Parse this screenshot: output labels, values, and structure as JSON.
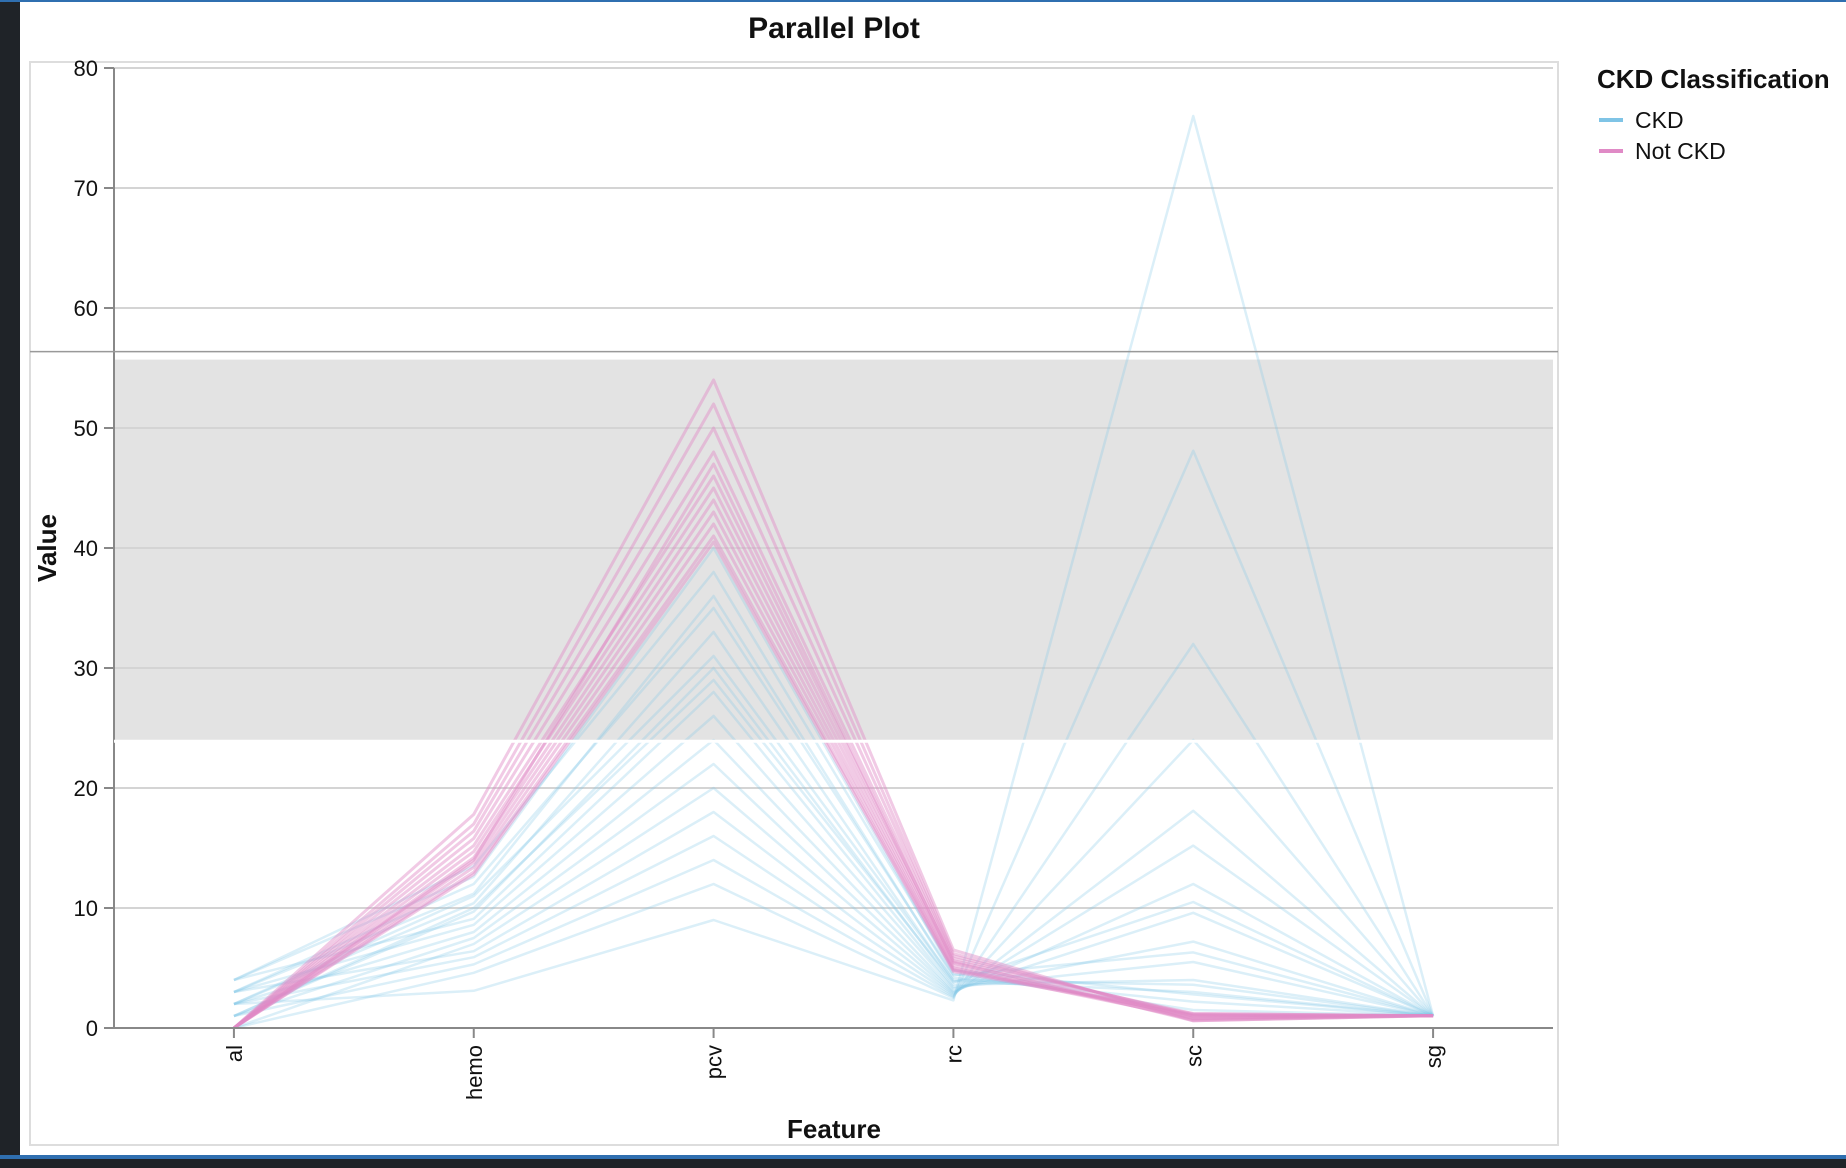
{
  "chart_data": {
    "type": "line",
    "subtype": "parallel-coordinates",
    "title": "Parallel Plot",
    "xlabel": "Feature",
    "ylabel": "Value",
    "categories": [
      "al",
      "hemo",
      "pcv",
      "rc",
      "sc",
      "sg"
    ],
    "ylim": [
      0,
      80
    ],
    "yticks": [
      0,
      10,
      20,
      30,
      40,
      50,
      60,
      70,
      80
    ],
    "grid": true,
    "legend": {
      "title": "CKD Classification",
      "placement": "top-right",
      "entries": [
        {
          "label": "CKD",
          "color": "#7fc4e6"
        },
        {
          "label": "Not CKD",
          "color": "#e08ac6"
        }
      ]
    },
    "brush_selection": {
      "ymin": 23.9,
      "ymax": 55.7,
      "color": "#e3e3e3"
    },
    "series": [
      {
        "group": "CKD",
        "values": [
          4,
          12.6,
          40,
          4.5,
          1.5,
          1.02
        ]
      },
      {
        "group": "CKD",
        "values": [
          3,
          11.2,
          36,
          4.2,
          2.2,
          1.015
        ]
      },
      {
        "group": "CKD",
        "values": [
          2,
          10.4,
          33,
          3.9,
          3.0,
          1.015
        ]
      },
      {
        "group": "CKD",
        "values": [
          1,
          9.7,
          30,
          3.6,
          4.0,
          1.01
        ]
      },
      {
        "group": "CKD",
        "values": [
          4,
          9.1,
          28,
          3.4,
          5.5,
          1.01
        ]
      },
      {
        "group": "CKD",
        "values": [
          3,
          8.6,
          26,
          3.3,
          7.2,
          1.01
        ]
      },
      {
        "group": "CKD",
        "values": [
          2,
          8.0,
          24,
          3.1,
          9.6,
          1.015
        ]
      },
      {
        "group": "CKD",
        "values": [
          1,
          7.5,
          22,
          3.0,
          12.0,
          1.01
        ]
      },
      {
        "group": "CKD",
        "values": [
          0,
          7.0,
          20,
          2.9,
          15.2,
          1.01
        ]
      },
      {
        "group": "CKD",
        "values": [
          3,
          6.4,
          18,
          2.8,
          18.1,
          1.015
        ]
      },
      {
        "group": "CKD",
        "values": [
          2,
          5.9,
          16,
          2.7,
          24.0,
          1.01
        ]
      },
      {
        "group": "CKD",
        "values": [
          1,
          5.3,
          14,
          2.6,
          32.0,
          1.01
        ]
      },
      {
        "group": "CKD",
        "values": [
          0,
          4.6,
          12,
          2.5,
          48.1,
          1.01
        ]
      },
      {
        "group": "CKD",
        "values": [
          2,
          3.1,
          9,
          2.3,
          76.0,
          1.015
        ]
      },
      {
        "group": "CKD",
        "values": [
          4,
          13.5,
          38,
          4.8,
          2.8,
          1.02
        ]
      },
      {
        "group": "CKD",
        "values": [
          3,
          12.0,
          35,
          4.4,
          6.3,
          1.015
        ]
      },
      {
        "group": "CKD",
        "values": [
          2,
          11.0,
          31,
          4.0,
          3.6,
          1.01
        ]
      },
      {
        "group": "CKD",
        "values": [
          1,
          10.0,
          29,
          3.8,
          10.5,
          1.015
        ]
      },
      {
        "group": "Not CKD",
        "values": [
          0,
          17.8,
          54,
          6.5,
          0.6,
          1.025
        ]
      },
      {
        "group": "Not CKD",
        "values": [
          0,
          17.0,
          52,
          6.2,
          0.8,
          1.025
        ]
      },
      {
        "group": "Not CKD",
        "values": [
          0,
          16.4,
          50,
          6.0,
          1.0,
          1.025
        ]
      },
      {
        "group": "Not CKD",
        "values": [
          0,
          15.8,
          48,
          5.8,
          1.1,
          1.02
        ]
      },
      {
        "group": "Not CKD",
        "values": [
          0,
          15.2,
          46,
          5.6,
          1.2,
          1.025
        ]
      },
      {
        "group": "Not CKD",
        "values": [
          0,
          14.7,
          45,
          5.4,
          0.9,
          1.02
        ]
      },
      {
        "group": "Not CKD",
        "values": [
          0,
          14.2,
          44,
          5.2,
          0.7,
          1.025
        ]
      },
      {
        "group": "Not CKD",
        "values": [
          0,
          13.8,
          43,
          5.0,
          1.0,
          1.02
        ]
      },
      {
        "group": "Not CKD",
        "values": [
          0,
          13.4,
          42,
          4.9,
          0.8,
          1.025
        ]
      },
      {
        "group": "Not CKD",
        "values": [
          0,
          13.0,
          41,
          4.8,
          1.2,
          1.02
        ]
      },
      {
        "group": "Not CKD",
        "values": [
          0,
          12.8,
          40.5,
          4.7,
          1.1,
          1.025
        ]
      },
      {
        "group": "Not CKD",
        "values": [
          0,
          14.0,
          47,
          5.5,
          0.6,
          1.02
        ]
      }
    ]
  }
}
